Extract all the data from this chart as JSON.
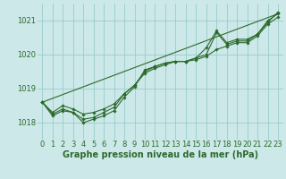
{
  "x": [
    0,
    1,
    2,
    3,
    4,
    5,
    6,
    7,
    8,
    9,
    10,
    11,
    12,
    13,
    14,
    15,
    16,
    17,
    18,
    19,
    20,
    21,
    22,
    23
  ],
  "series1": [
    1018.6,
    1018.2,
    1018.35,
    1018.3,
    1018.0,
    1018.1,
    1018.2,
    1018.35,
    1018.75,
    1019.05,
    1019.55,
    1019.65,
    1019.75,
    1019.8,
    1019.8,
    1019.9,
    1020.0,
    1020.65,
    1020.3,
    1020.4,
    1020.4,
    1020.6,
    1021.0,
    1021.2
  ],
  "series2": [
    1018.6,
    1018.25,
    1018.4,
    1018.3,
    1018.1,
    1018.15,
    1018.3,
    1018.45,
    1018.85,
    1019.1,
    1019.5,
    1019.65,
    1019.75,
    1019.8,
    1019.8,
    1019.9,
    1020.2,
    1020.7,
    1020.35,
    1020.45,
    1020.45,
    1020.6,
    1020.95,
    1021.25
  ],
  "series3": [
    1018.6,
    1018.3,
    1018.5,
    1018.4,
    1018.25,
    1018.3,
    1018.4,
    1018.55,
    1018.85,
    1019.1,
    1019.45,
    1019.6,
    1019.7,
    1019.8,
    1019.8,
    1019.85,
    1019.95,
    1020.15,
    1020.25,
    1020.35,
    1020.35,
    1020.55,
    1020.9,
    1021.1
  ],
  "ylim": [
    1017.5,
    1021.5
  ],
  "xlim": [
    -0.5,
    23.5
  ],
  "yticks": [
    1018,
    1019,
    1020,
    1021
  ],
  "xticks": [
    0,
    1,
    2,
    3,
    4,
    5,
    6,
    7,
    8,
    9,
    10,
    11,
    12,
    13,
    14,
    15,
    16,
    17,
    18,
    19,
    20,
    21,
    22,
    23
  ],
  "xlabel": "Graphe pression niveau de la mer (hPa)",
  "bg_color": "#cce8e8",
  "grid_color": "#99cccc",
  "line_color": "#2d6a2d",
  "marker": "D",
  "markersize": 1.8,
  "linewidth": 0.8,
  "xlabel_fontsize": 7.0,
  "tick_fontsize": 6.0
}
